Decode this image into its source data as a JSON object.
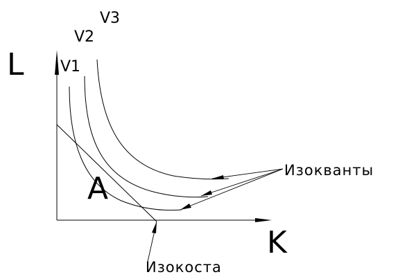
{
  "axes": {
    "y_label": "L",
    "x_label": "K"
  },
  "isoquants": [
    {
      "label": "V1"
    },
    {
      "label": "V2"
    },
    {
      "label": "V3"
    }
  ],
  "point": {
    "label": "A"
  },
  "annotations": {
    "isoquants_label": "Изокванты",
    "isocost_label": "Изокоста"
  }
}
